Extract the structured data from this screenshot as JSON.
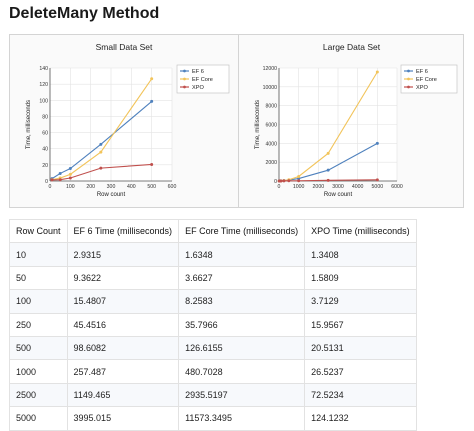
{
  "page": {
    "title": "DeleteMany Method"
  },
  "chart_data": [
    {
      "type": "line",
      "title": "Small Data Set",
      "xlabel": "Row count",
      "ylabel": "Time, milliseconds",
      "x": [
        10,
        50,
        100,
        250,
        500
      ],
      "xlim": [
        0,
        600
      ],
      "xticks": [
        0,
        100,
        200,
        300,
        400,
        500,
        600
      ],
      "ylim": [
        0,
        140
      ],
      "yticks": [
        0,
        20,
        40,
        60,
        80,
        100,
        120,
        140
      ],
      "grid": true,
      "legend": "top-right",
      "series": [
        {
          "name": "EF 6",
          "color": "#4f81bd",
          "values": [
            2.9315,
            9.3622,
            15.4807,
            45.4516,
            98.6082
          ]
        },
        {
          "name": "EF Core",
          "color": "#f2c45a",
          "values": [
            1.6348,
            3.6627,
            8.2583,
            35.7966,
            126.6155
          ]
        },
        {
          "name": "XPO",
          "color": "#c0504d",
          "values": [
            1.3408,
            1.5809,
            3.7129,
            15.9567,
            20.5131
          ]
        }
      ]
    },
    {
      "type": "line",
      "title": "Large Data Set",
      "xlabel": "Row count",
      "ylabel": "Time, milliseconds",
      "x": [
        10,
        50,
        100,
        250,
        500,
        1000,
        2500,
        5000
      ],
      "xlim": [
        0,
        6000
      ],
      "xticks": [
        0,
        1000,
        2000,
        3000,
        4000,
        5000,
        6000
      ],
      "ylim": [
        0,
        12000
      ],
      "yticks": [
        0,
        2000,
        4000,
        6000,
        8000,
        10000,
        12000
      ],
      "grid": true,
      "legend": "top-right",
      "series": [
        {
          "name": "EF 6",
          "color": "#4f81bd",
          "values": [
            2.9315,
            9.3622,
            15.4807,
            45.4516,
            98.6082,
            257.487,
            1149.465,
            3995.015
          ]
        },
        {
          "name": "EF Core",
          "color": "#f2c45a",
          "values": [
            1.6348,
            3.6627,
            8.2583,
            35.7966,
            126.6155,
            480.7028,
            2935.5197,
            11573.3495
          ]
        },
        {
          "name": "XPO",
          "color": "#c0504d",
          "values": [
            1.3408,
            1.5809,
            3.7129,
            15.9567,
            20.5131,
            26.5237,
            72.5234,
            124.1232
          ]
        }
      ]
    }
  ],
  "table": {
    "headers": [
      "Row Count",
      "EF 6 Time (milliseconds)",
      "EF Core Time (milliseconds)",
      "XPO Time (milliseconds)"
    ],
    "rows": [
      [
        "10",
        "2.9315",
        "1.6348",
        "1.3408"
      ],
      [
        "50",
        "9.3622",
        "3.6627",
        "1.5809"
      ],
      [
        "100",
        "15.4807",
        "8.2583",
        "3.7129"
      ],
      [
        "250",
        "45.4516",
        "35.7966",
        "15.9567"
      ],
      [
        "500",
        "98.6082",
        "126.6155",
        "20.5131"
      ],
      [
        "1000",
        "257.487",
        "480.7028",
        "26.5237"
      ],
      [
        "2500",
        "1149.465",
        "2935.5197",
        "72.5234"
      ],
      [
        "5000",
        "3995.015",
        "11573.3495",
        "124.1232"
      ]
    ]
  }
}
